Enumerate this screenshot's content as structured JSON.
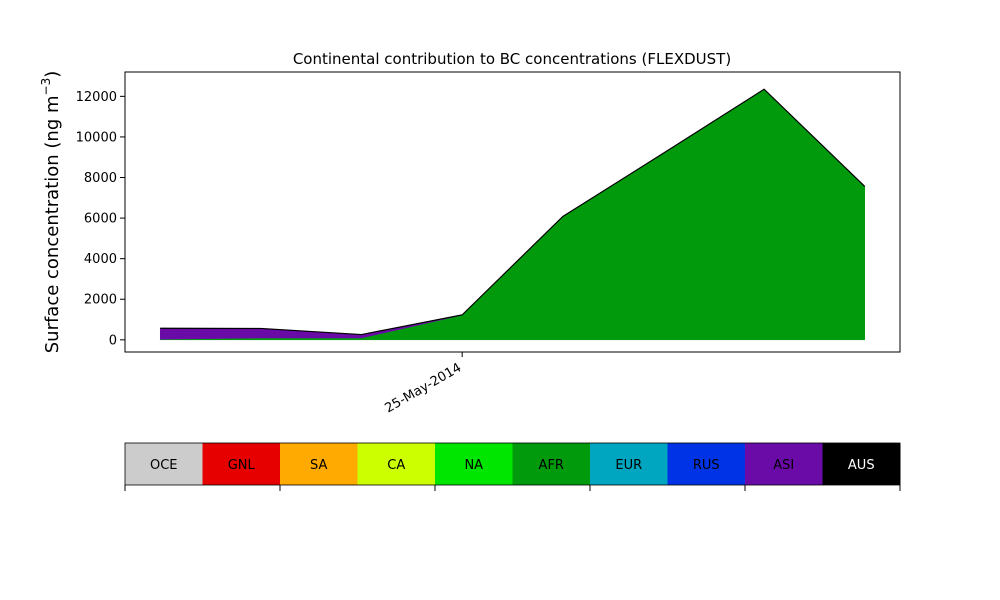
{
  "chart_data": {
    "type": "area",
    "stacked": true,
    "title": "Continental contribution to BC concentrations (FLEXDUST)",
    "ylabel": "Surface concentration (ng m",
    "ylabel_sup": "−3",
    "ylabel_close": ")",
    "xlabel": "",
    "ylim": [
      -600,
      13200
    ],
    "xlim": [
      -0.35,
      7.35
    ],
    "yticks": [
      0,
      2000,
      4000,
      6000,
      8000,
      10000,
      12000
    ],
    "yticklabels": [
      "0",
      "2000",
      "4000",
      "6000",
      "8000",
      "10000",
      "12000"
    ],
    "xticks": [
      {
        "x": 3,
        "label": "25-May-2014"
      }
    ],
    "x": [
      0,
      1,
      2,
      3,
      4,
      5,
      6,
      7
    ],
    "series": [
      {
        "name": "OCE",
        "color": "#cccccc",
        "values": [
          0,
          0,
          0,
          0,
          0,
          0,
          0,
          0
        ]
      },
      {
        "name": "GNL",
        "color": "#e60000",
        "values": [
          0,
          0,
          0,
          0,
          0,
          0,
          0,
          0
        ]
      },
      {
        "name": "SA",
        "color": "#ffaa00",
        "values": [
          0,
          0,
          0,
          0,
          0,
          0,
          0,
          0
        ]
      },
      {
        "name": "CA",
        "color": "#ccff00",
        "values": [
          0,
          0,
          0,
          0,
          0,
          0,
          0,
          0
        ]
      },
      {
        "name": "NA",
        "color": "#00e600",
        "values": [
          0,
          0,
          0,
          0,
          0,
          0,
          0,
          0
        ]
      },
      {
        "name": "AFR",
        "color": "#009a0c",
        "values": [
          30,
          90,
          90,
          1220,
          6080,
          9200,
          12350,
          7560
        ]
      },
      {
        "name": "EUR",
        "color": "#00a6bf",
        "values": [
          0,
          0,
          0,
          0,
          0,
          0,
          0,
          0
        ]
      },
      {
        "name": "RUS",
        "color": "#0033e6",
        "values": [
          0,
          0,
          0,
          0,
          0,
          0,
          0,
          0
        ]
      },
      {
        "name": "ASI",
        "color": "#6a0ba8",
        "values": [
          540,
          470,
          170,
          10,
          0,
          0,
          0,
          0
        ]
      },
      {
        "name": "AUS",
        "color": "#000000",
        "values": [
          0,
          0,
          0,
          0,
          0,
          0,
          0,
          0
        ]
      }
    ],
    "legend_placement": "bottom",
    "grid": false
  }
}
